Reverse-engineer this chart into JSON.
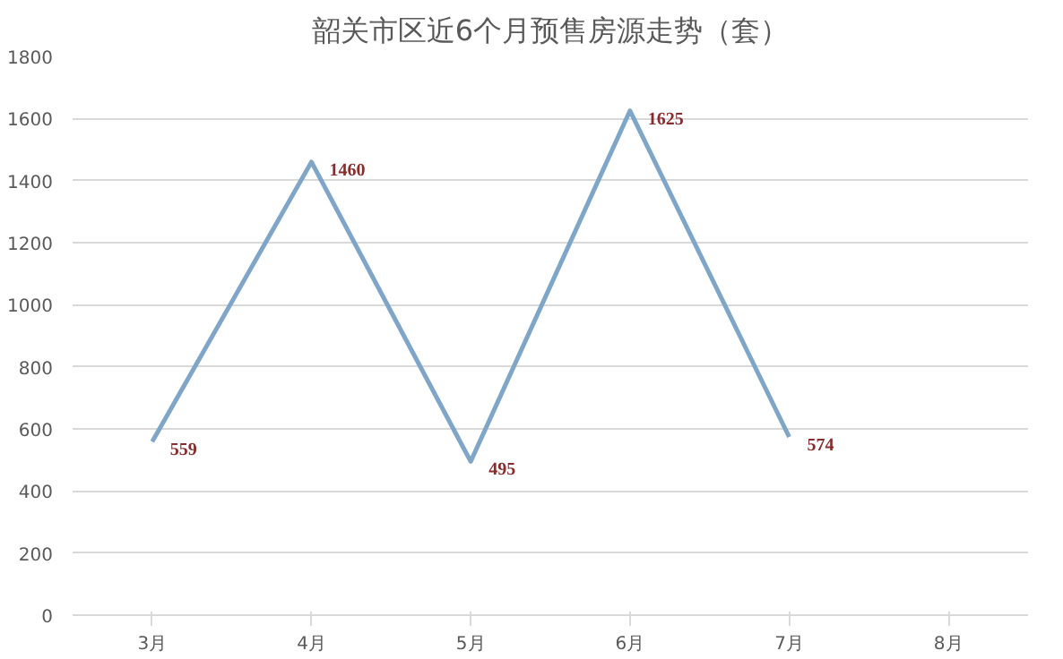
{
  "chart_data": {
    "type": "line",
    "title": "韶关市区近6个月预售房源走势（套）",
    "categories": [
      "3月",
      "4月",
      "5月",
      "6月",
      "7月",
      "8月"
    ],
    "series": [
      {
        "color": "#7fa6c8",
        "values": [
          559,
          1460,
          495,
          1625,
          574,
          null
        ]
      }
    ],
    "ylim": [
      0,
      1800
    ],
    "yticks": [
      0,
      200,
      400,
      600,
      800,
      1000,
      1200,
      1400,
      1600,
      1800
    ],
    "grid": "y",
    "data_labels": true,
    "marker": "none",
    "line_style": "solid"
  }
}
